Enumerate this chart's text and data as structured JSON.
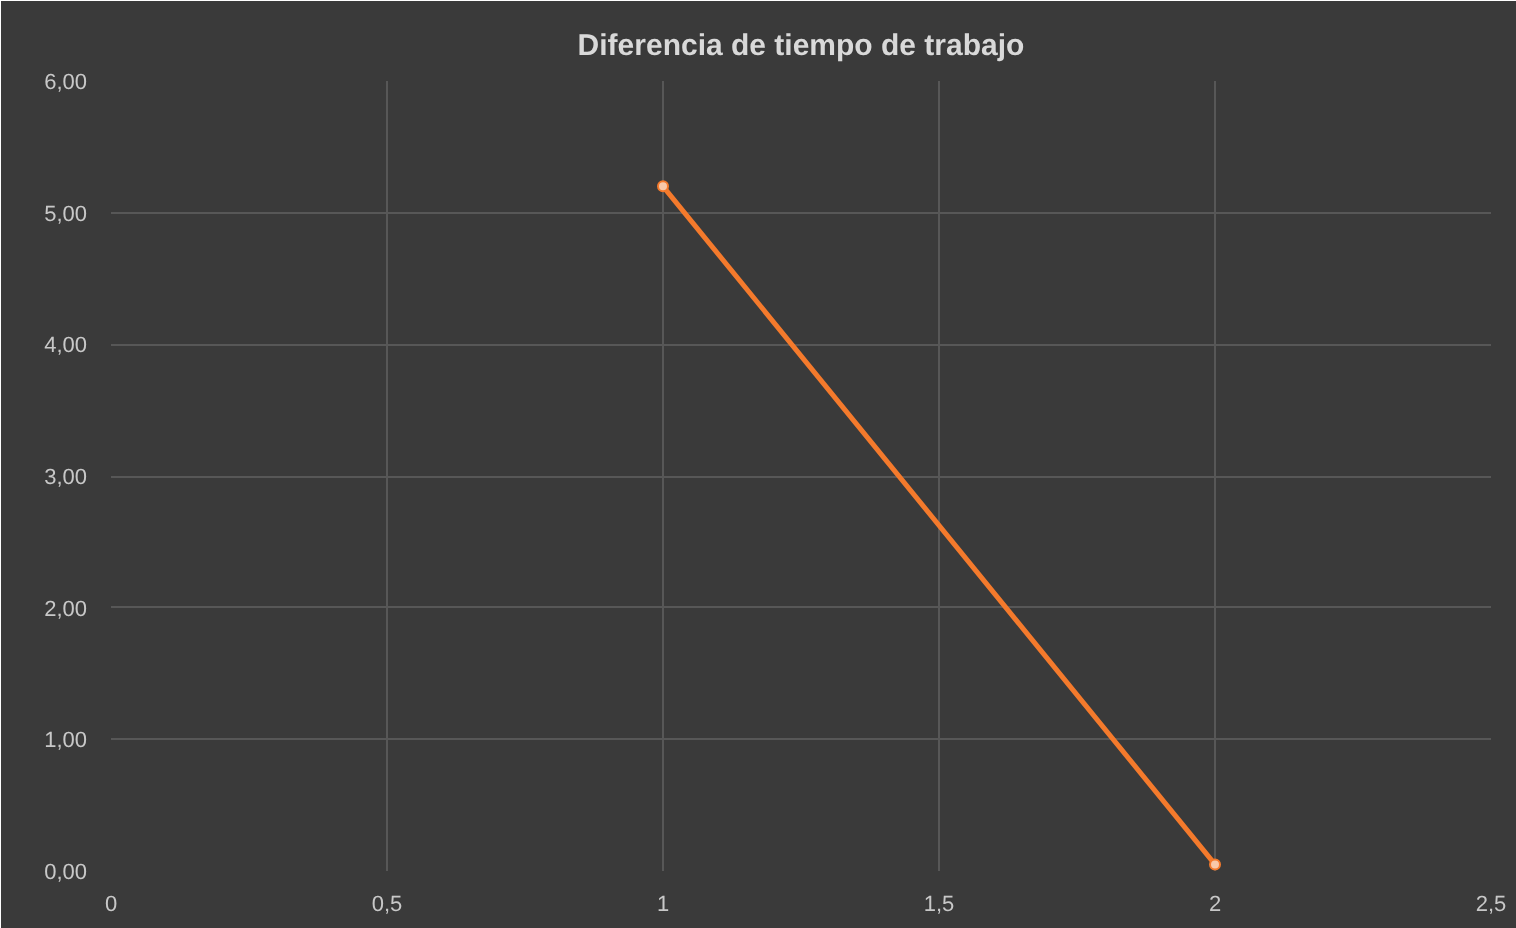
{
  "chart_data": {
    "type": "line",
    "title": "Diferencia de tiempo de trabajo",
    "x": [
      1,
      2
    ],
    "series": [
      {
        "color": "#f47a2c",
        "values": [
          5.2,
          0.05
        ]
      }
    ],
    "xlim": [
      0,
      2.5
    ],
    "xticks": [
      0,
      {
        "value": 0.5,
        "label": "0,5"
      },
      1,
      {
        "value": 1.5,
        "label": "1,5"
      },
      2,
      {
        "value": 2.5,
        "label": "2,5"
      }
    ],
    "ylim": [
      0,
      6
    ],
    "yticks": [
      {
        "value": 0,
        "label": "0,00"
      },
      {
        "value": 1,
        "label": "1,00"
      },
      {
        "value": 2,
        "label": "2,00"
      },
      {
        "value": 3,
        "label": "3,00"
      },
      {
        "value": 4,
        "label": "4,00"
      },
      {
        "value": 5,
        "label": "5,00"
      },
      {
        "value": 6,
        "label": "6,00"
      }
    ],
    "grid": true,
    "marker": "circle",
    "line_style": "solid"
  }
}
